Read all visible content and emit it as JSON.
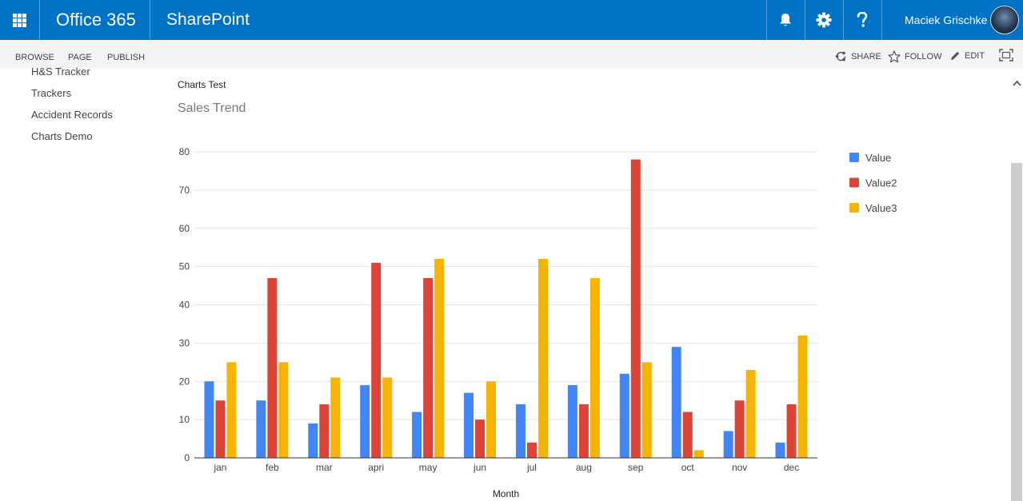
{
  "suitebar": {
    "brand": "Office 365",
    "app": "SharePoint",
    "user_name": "Maciek Grischke",
    "icons": [
      "app-launcher-icon",
      "bell-icon",
      "gear-icon",
      "help-icon"
    ]
  },
  "ribbon": {
    "tabs": [
      "BROWSE",
      "PAGE",
      "PUBLISH"
    ],
    "actions": [
      {
        "label": "SHARE",
        "icon": "share-icon"
      },
      {
        "label": "FOLLOW",
        "icon": "star-icon"
      },
      {
        "label": "EDIT",
        "icon": "pencil-icon"
      }
    ],
    "focus_icon": "focus-mode-icon"
  },
  "left_nav": {
    "items": [
      "H&S Tracker",
      "Trackers",
      "Accident Records",
      "Charts Demo"
    ]
  },
  "page": {
    "breadcrumb": "Charts Test",
    "title": "Sales Trend"
  },
  "colors": {
    "suitebar": "#0072c6",
    "series": [
      "#4285f4",
      "#db4437",
      "#f4b400"
    ]
  },
  "chart_data": {
    "type": "bar",
    "xlabel": "Month",
    "ylabel": "",
    "ylim": [
      0,
      80
    ],
    "yticks": [
      0,
      10,
      20,
      30,
      40,
      50,
      60,
      70,
      80
    ],
    "legend_position": "right",
    "grid": true,
    "categories": [
      "jan",
      "feb",
      "mar",
      "apri",
      "may",
      "jun",
      "jul",
      "aug",
      "sep",
      "oct",
      "nov",
      "dec"
    ],
    "series": [
      {
        "name": "Value",
        "values": [
          20,
          15,
          9,
          19,
          12,
          17,
          14,
          19,
          22,
          29,
          7,
          4
        ]
      },
      {
        "name": "Value2",
        "values": [
          15,
          47,
          14,
          51,
          47,
          10,
          4,
          14,
          78,
          12,
          15,
          14
        ]
      },
      {
        "name": "Value3",
        "values": [
          25,
          25,
          21,
          21,
          52,
          20,
          52,
          47,
          25,
          2,
          23,
          32
        ]
      }
    ]
  }
}
